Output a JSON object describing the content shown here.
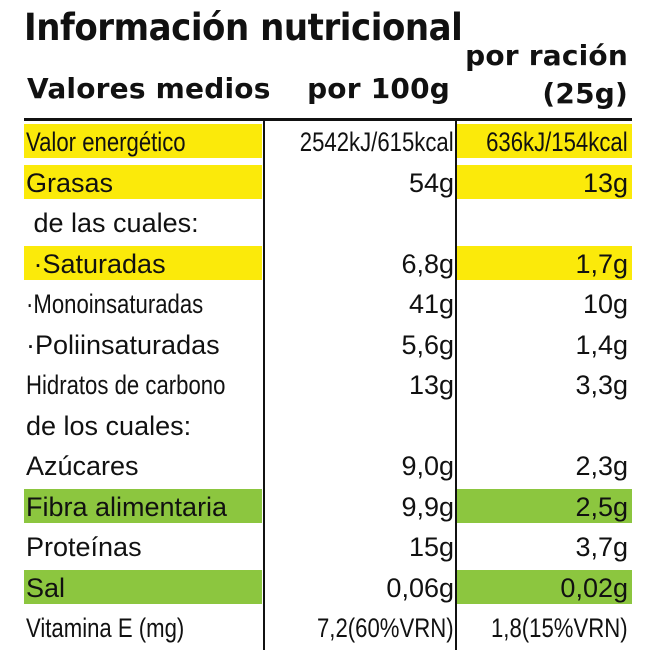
{
  "header": {
    "title": "Información nutricional",
    "col_label": "Valores medios",
    "col_per100": "por 100g",
    "col_serving_line1": "por ración",
    "col_serving_line2": "(25g)"
  },
  "colors": {
    "highlight_yellow": "#fbea0a",
    "highlight_green": "#8cc63f",
    "text": "#111111"
  },
  "rows": [
    {
      "label": "Valor energético",
      "per100": "2542kJ/615kcal",
      "serving": "636kJ/154kcal",
      "highlight": "yellow"
    },
    {
      "label": "Grasas",
      "per100": "54g",
      "serving": "13g",
      "highlight": "yellow"
    },
    {
      "label": " de las cuales:",
      "per100": "",
      "serving": "",
      "highlight": ""
    },
    {
      "label": " ·Saturadas",
      "per100": "6,8g",
      "serving": "1,7g",
      "highlight": "yellow"
    },
    {
      "label": "·Monoinsaturadas",
      "per100": "41g",
      "serving": "10g",
      "highlight": ""
    },
    {
      "label": "·Poliinsaturadas",
      "per100": "5,6g",
      "serving": "1,4g",
      "highlight": ""
    },
    {
      "label": "Hidratos de carbono",
      "per100": "13g",
      "serving": "3,3g",
      "highlight": ""
    },
    {
      "label": "de los cuales:",
      "per100": "",
      "serving": "",
      "highlight": ""
    },
    {
      "label": "Azúcares",
      "per100": "9,0g",
      "serving": "2,3g",
      "highlight": ""
    },
    {
      "label": "Fibra alimentaria",
      "per100": "9,9g",
      "serving": "2,5g",
      "highlight": "green"
    },
    {
      "label": "Proteínas",
      "per100": "15g",
      "serving": "3,7g",
      "highlight": ""
    },
    {
      "label": "Sal",
      "per100": "0,06g",
      "serving": "0,02g",
      "highlight": "green"
    },
    {
      "label": "Vitamina E (mg)",
      "per100": "7,2(60%VRN)",
      "serving": "1,8(15%VRN)",
      "highlight": ""
    }
  ]
}
